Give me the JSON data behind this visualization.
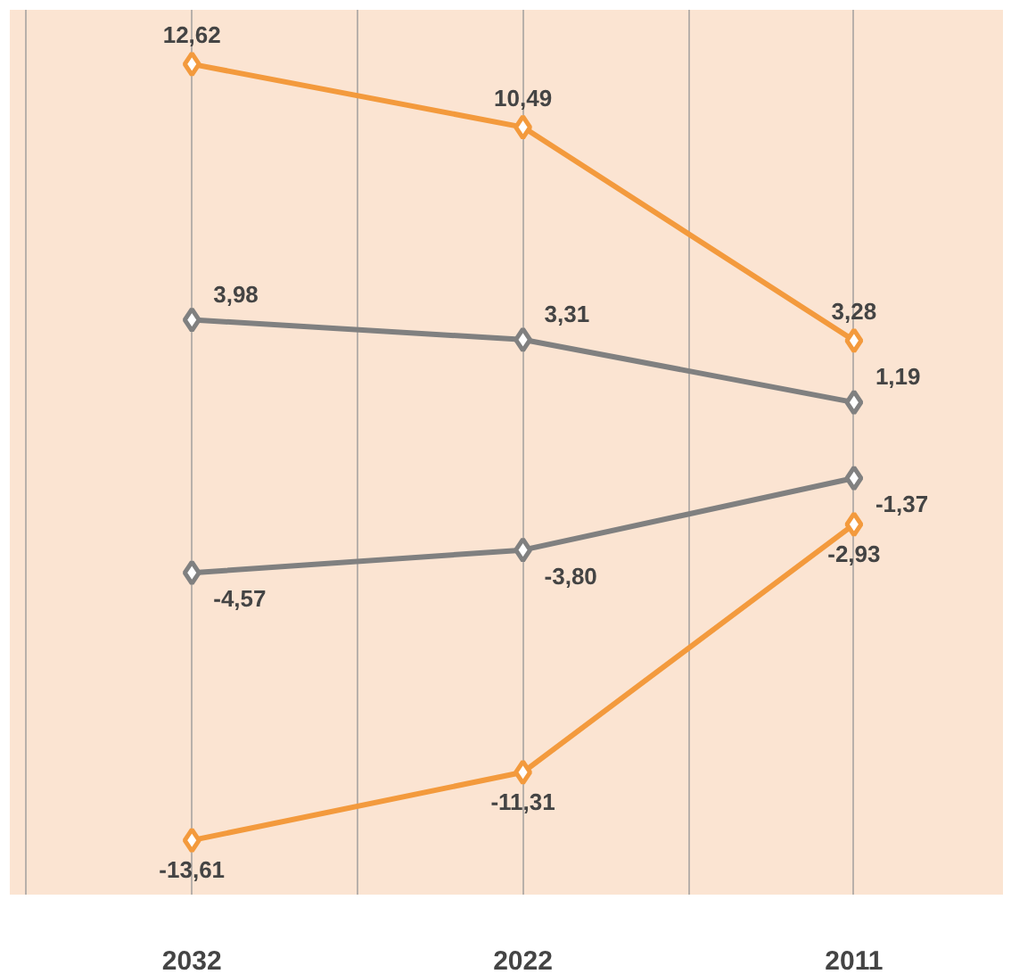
{
  "chart_data": {
    "type": "line",
    "categories": [
      "2032",
      "2022",
      "2011"
    ],
    "marker": "diamond",
    "grid": "x",
    "tick_labels": "x",
    "series": [
      {
        "color": "#f39a3d",
        "values": [
          12.62,
          10.49,
          3.28
        ],
        "value_labels": [
          "12,62",
          "10,49",
          "3,28"
        ]
      },
      {
        "color": "#808080",
        "values": [
          3.98,
          3.31,
          1.19
        ],
        "value_labels": [
          "3,98",
          "3,31",
          "1,19"
        ]
      },
      {
        "color": "#808080",
        "values": [
          -4.57,
          -3.8,
          -1.37
        ],
        "value_labels": [
          "-4,57",
          "-3,80",
          "-1,37"
        ]
      },
      {
        "color": "#f39a3d",
        "values": [
          -13.61,
          -11.31,
          -2.93
        ],
        "value_labels": [
          "-13,61",
          "-11,31",
          "-2,93"
        ]
      }
    ]
  }
}
